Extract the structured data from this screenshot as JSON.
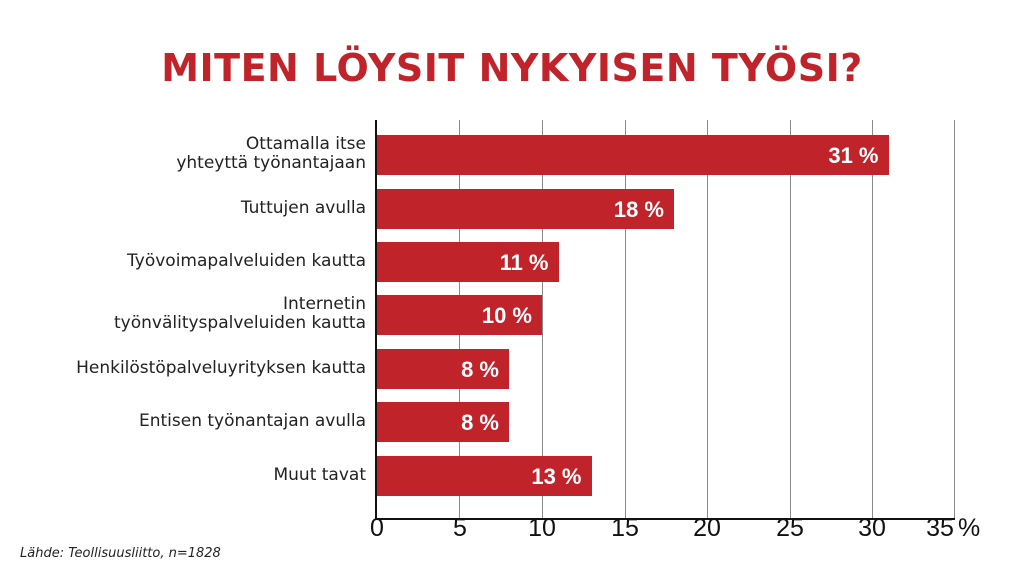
{
  "title": "MITEN LÖYSIT NYKYISEN TYÖSI?",
  "source": "Lähde: Teollisuusliitto, n=1828",
  "bar_color": "#C0232A",
  "axis_unit": "%",
  "ticks": [
    "0",
    "5",
    "10",
    "15",
    "20",
    "25",
    "30",
    "35"
  ],
  "bars": [
    {
      "label_line1": "Ottamalla itse",
      "label_line2": "yhteyttä työnantajaan",
      "value": 31,
      "value_label": "31 %"
    },
    {
      "label_line1": "Tuttujen avulla",
      "label_line2": "",
      "value": 18,
      "value_label": "18 %"
    },
    {
      "label_line1": "Työvoimapalveluiden kautta",
      "label_line2": "",
      "value": 11,
      "value_label": "11 %"
    },
    {
      "label_line1": "Internetin",
      "label_line2": "työnvälityspalveluiden kautta",
      "value": 10,
      "value_label": "10 %"
    },
    {
      "label_line1": "Henkilöstöpalveluyrityksen kautta",
      "label_line2": "",
      "value": 8,
      "value_label": "8 %"
    },
    {
      "label_line1": "Entisen työnantajan avulla",
      "label_line2": "",
      "value": 8,
      "value_label": "8 %"
    },
    {
      "label_line1": "Muut tavat",
      "label_line2": "",
      "value": 13,
      "value_label": "13 %"
    }
  ],
  "chart_data": {
    "type": "bar",
    "orientation": "horizontal",
    "title": "MITEN LÖYSIT NYKYISEN TYÖSI?",
    "categories": [
      "Ottamalla itse yhteyttä työnantajaan",
      "Tuttujen avulla",
      "Työvoimapalveluiden kautta",
      "Internetin työnvälityspalveluiden kautta",
      "Henkilöstöpalveluyrityksen kautta",
      "Entisen työnantajan avulla",
      "Muut tavat"
    ],
    "values": [
      31,
      18,
      11,
      10,
      8,
      8,
      13
    ],
    "xlabel": "%",
    "ylabel": "",
    "xlim": [
      0,
      35
    ],
    "xticks": [
      0,
      5,
      10,
      15,
      20,
      25,
      30,
      35
    ],
    "grid": true,
    "legend": null,
    "annotations": [
      "Lähde: Teollisuusliitto, n=1828"
    ]
  }
}
